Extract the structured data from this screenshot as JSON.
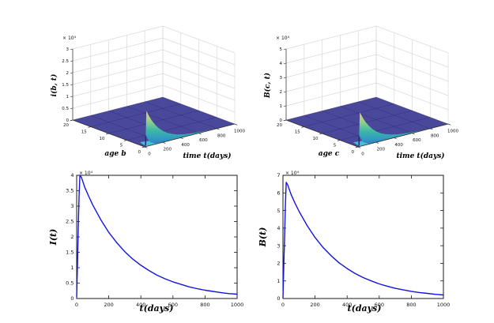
{
  "figure": {
    "background_color": "#ffffff",
    "description": "Four-panel MATLAB-style figure: two 3D surface plots (top row) and two 2D line plots (bottom row) of an age-structured model solution"
  },
  "chart_data": [
    {
      "type": "surface",
      "zlabel": "i(b, t)",
      "xlabel": "age b",
      "ylabel": "time t(days)",
      "z_unit_multiplier": "× 10⁴",
      "z_ticks": [
        0,
        0.5,
        1,
        1.5,
        2,
        2.5,
        3
      ],
      "age_ticks": [
        0,
        5,
        10,
        15,
        20
      ],
      "time_ticks": [
        0,
        200,
        400,
        600,
        800,
        1000
      ],
      "zlim": [
        0,
        30000
      ],
      "age_lim": [
        0,
        20
      ],
      "time_lim": [
        0,
        1000
      ],
      "peak": {
        "age": 0,
        "time": 20,
        "value": 15000
      },
      "decay_constant_days": 160,
      "shape": "surface ~0 everywhere except a sharp ridge near age 0 peaking at t≈20 days, decaying exponentially in time",
      "colors": {
        "floor": "#4a489b",
        "trail": "#45c6d6",
        "ridge_stops": [
          "#f2d262",
          "#8fd08d",
          "#3cb8a6",
          "#2f93c6",
          "#4656a8"
        ]
      }
    },
    {
      "type": "surface",
      "zlabel": "B(c, t)",
      "xlabel": "age c",
      "ylabel": "time t(days)",
      "z_unit_multiplier": "× 10⁴",
      "z_ticks": [
        0,
        1,
        2,
        3,
        4,
        5
      ],
      "age_ticks": [
        0,
        5,
        10,
        15,
        20
      ],
      "time_ticks": [
        0,
        200,
        400,
        600,
        800,
        1000
      ],
      "zlim": [
        0,
        50000
      ],
      "age_lim": [
        0,
        20
      ],
      "time_lim": [
        0,
        1000
      ],
      "peak": {
        "age": 0,
        "time": 20,
        "value": 24000
      },
      "decay_constant_days": 160,
      "shape": "surface ~0 everywhere except a sharp ridge near age 0 peaking at t≈20 days, decaying exponentially in time",
      "colors": {
        "floor": "#4a489b",
        "trail": "#45c6d6",
        "ridge_stops": [
          "#f2d262",
          "#8fd08d",
          "#3cb8a6",
          "#2f93c6",
          "#4656a8"
        ]
      }
    },
    {
      "type": "line",
      "ylabel": "I(t)",
      "xlabel": "t(days)",
      "y_unit_multiplier": "× 10⁴",
      "x_ticks": [
        0,
        200,
        400,
        600,
        800,
        1000
      ],
      "y_ticks": [
        0,
        0.5,
        1,
        1.5,
        2,
        2.5,
        3,
        3.5,
        4
      ],
      "xlim": [
        0,
        1000
      ],
      "ylim": [
        0,
        4
      ],
      "y_value_scale": 10000,
      "line_color": "#1414e0",
      "points": [
        [
          0,
          0.05
        ],
        [
          5,
          1.1
        ],
        [
          10,
          2.3
        ],
        [
          15,
          3.3
        ],
        [
          20,
          4.0
        ],
        [
          30,
          3.93
        ],
        [
          50,
          3.62
        ],
        [
          75,
          3.32
        ],
        [
          100,
          3.04
        ],
        [
          150,
          2.56
        ],
        [
          200,
          2.15
        ],
        [
          250,
          1.81
        ],
        [
          300,
          1.52
        ],
        [
          350,
          1.28
        ],
        [
          400,
          1.08
        ],
        [
          450,
          0.91
        ],
        [
          500,
          0.76
        ],
        [
          550,
          0.64
        ],
        [
          600,
          0.54
        ],
        [
          650,
          0.46
        ],
        [
          700,
          0.38
        ],
        [
          750,
          0.32
        ],
        [
          800,
          0.27
        ],
        [
          850,
          0.23
        ],
        [
          900,
          0.19
        ],
        [
          950,
          0.16
        ],
        [
          1000,
          0.14
        ]
      ]
    },
    {
      "type": "line",
      "ylabel": "B(t)",
      "xlabel": "t(days)",
      "y_unit_multiplier": "× 10⁴",
      "x_ticks": [
        0,
        200,
        400,
        600,
        800,
        1000
      ],
      "y_ticks": [
        0,
        1,
        2,
        3,
        4,
        5,
        6,
        7
      ],
      "xlim": [
        0,
        1000
      ],
      "ylim": [
        0,
        7
      ],
      "y_value_scale": 10000,
      "line_color": "#1414e0",
      "points": [
        [
          0,
          0.05
        ],
        [
          5,
          1.8
        ],
        [
          10,
          3.4
        ],
        [
          15,
          5.2
        ],
        [
          20,
          6.6
        ],
        [
          30,
          6.45
        ],
        [
          50,
          5.93
        ],
        [
          75,
          5.42
        ],
        [
          100,
          4.96
        ],
        [
          150,
          4.15
        ],
        [
          200,
          3.47
        ],
        [
          250,
          2.9
        ],
        [
          300,
          2.43
        ],
        [
          350,
          2.03
        ],
        [
          400,
          1.7
        ],
        [
          450,
          1.42
        ],
        [
          500,
          1.19
        ],
        [
          550,
          1.0
        ],
        [
          600,
          0.83
        ],
        [
          650,
          0.7
        ],
        [
          700,
          0.58
        ],
        [
          750,
          0.49
        ],
        [
          800,
          0.41
        ],
        [
          850,
          0.34
        ],
        [
          900,
          0.29
        ],
        [
          950,
          0.24
        ],
        [
          1000,
          0.2
        ]
      ]
    }
  ]
}
